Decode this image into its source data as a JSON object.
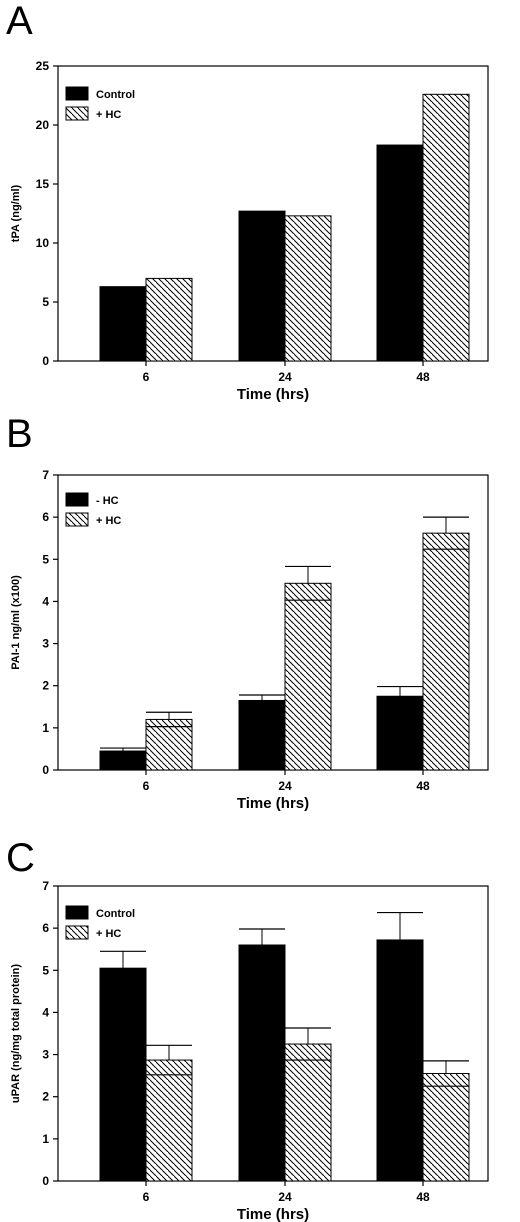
{
  "chart_data": [
    {
      "panel": "A",
      "type": "bar",
      "categories": [
        "6",
        "24",
        "48"
      ],
      "series": [
        {
          "name": "Control",
          "values": [
            6.3,
            12.7,
            18.3
          ]
        },
        {
          "name": "+ HC",
          "values": [
            7.0,
            12.3,
            22.6
          ]
        }
      ],
      "xlabel": "Time (hrs)",
      "ylabel": "tPA (ng/ml)",
      "ylim": [
        0,
        25
      ],
      "yticks": [
        0,
        5,
        10,
        15,
        20,
        25
      ],
      "grid": false,
      "legend_position": "top-left"
    },
    {
      "panel": "B",
      "type": "bar",
      "categories": [
        "6",
        "24",
        "48"
      ],
      "series": [
        {
          "name": "- HC",
          "values": [
            0.45,
            1.65,
            1.75
          ],
          "errors": [
            0.07,
            0.13,
            0.23
          ]
        },
        {
          "name": "+ HC",
          "values": [
            1.2,
            4.43,
            5.62
          ],
          "errors": [
            0.17,
            0.4,
            0.38
          ]
        }
      ],
      "xlabel": "Time (hrs)",
      "ylabel": "PAI-1 ng/ml (x100)",
      "ylim": [
        0,
        7
      ],
      "yticks": [
        0,
        1,
        2,
        3,
        4,
        5,
        6,
        7
      ],
      "grid": false,
      "legend_position": "top-left"
    },
    {
      "panel": "C",
      "type": "bar",
      "categories": [
        "6",
        "24",
        "48"
      ],
      "series": [
        {
          "name": "Control",
          "values": [
            5.05,
            5.6,
            5.72
          ],
          "errors": [
            0.4,
            0.38,
            0.65
          ]
        },
        {
          "name": "+ HC",
          "values": [
            2.87,
            3.25,
            2.55
          ],
          "errors": [
            0.35,
            0.38,
            0.3
          ]
        }
      ],
      "xlabel": "Time (hrs)",
      "ylabel": "uPAR (ng/mg total protein)",
      "ylim": [
        0,
        7
      ],
      "yticks": [
        0,
        1,
        2,
        3,
        4,
        5,
        6,
        7
      ],
      "grid": false,
      "legend_position": "top-left"
    }
  ],
  "colors": {
    "series_solid": "#000000",
    "series_hatched": "#000000",
    "axis": "#000000",
    "background": "#ffffff"
  }
}
